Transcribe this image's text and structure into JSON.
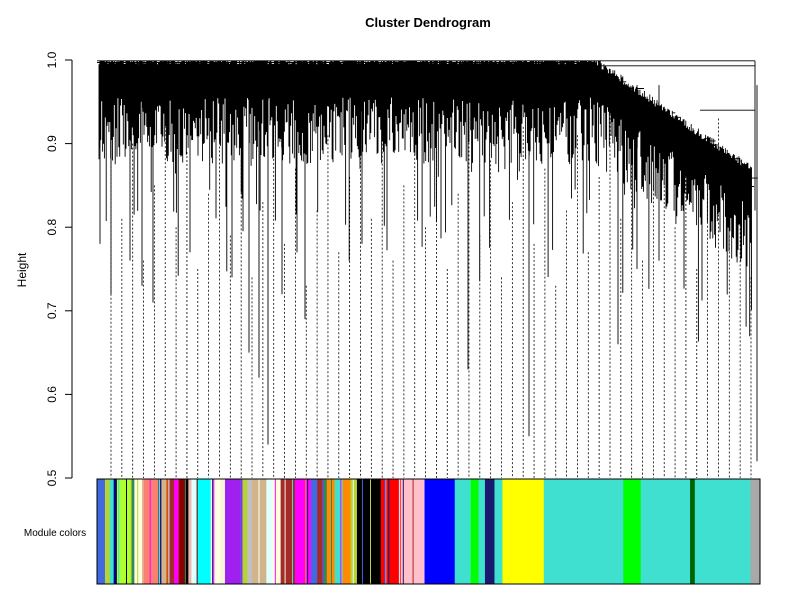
{
  "chart_data": {
    "type": "dendrogram",
    "title": "Cluster Dendrogram",
    "xlabel": "",
    "ylabel": "Height",
    "ylim": [
      0.5,
      1.0
    ],
    "yticks": [
      0.5,
      0.6,
      0.7,
      0.8,
      0.9,
      1.0
    ],
    "ytick_labels": [
      "0.5",
      "0.6",
      "0.7",
      "0.8",
      "0.9",
      "1.0"
    ],
    "color_bar_label": "Module colors",
    "dashed_leaf_count": 60,
    "colors": {
      "background": "#ffffff",
      "tree": "#000000"
    },
    "module_color_bands": [
      {
        "color": "#4169e1",
        "width": 0.01
      },
      {
        "color": "#b8d432",
        "width": 0.006
      },
      {
        "color": "#40e0d0",
        "width": 0.005
      },
      {
        "color": "#000080",
        "width": 0.004
      },
      {
        "color": "#adff2f",
        "width": 0.018
      },
      {
        "color": "#2e8b57",
        "width": 0.004
      },
      {
        "color": "#ffffe0",
        "width": 0.01
      },
      {
        "color": "#fa8072",
        "width": 0.02
      },
      {
        "color": "#191970",
        "width": 0.004
      },
      {
        "color": "#d2b48c",
        "width": 0.006
      },
      {
        "color": "#a52a2a",
        "width": 0.01
      },
      {
        "color": "#ff00ff",
        "width": 0.006
      },
      {
        "color": "#8b0000",
        "width": 0.008
      },
      {
        "color": "#000000",
        "width": 0.004
      },
      {
        "color": "#ffc0cb",
        "width": 0.004
      },
      {
        "color": "#e0ffff",
        "width": 0.006
      },
      {
        "color": "#00ffff",
        "width": 0.018
      },
      {
        "color": "#ffffe0",
        "width": 0.012
      },
      {
        "color": "#f5f5dc",
        "width": 0.006
      },
      {
        "color": "#a020f0",
        "width": 0.022
      },
      {
        "color": "#b8d432",
        "width": 0.006
      },
      {
        "color": "#c0c0c0",
        "width": 0.006
      },
      {
        "color": "#d2b48c",
        "width": 0.018
      },
      {
        "color": "#e0ffff",
        "width": 0.008
      },
      {
        "color": "#ffffe0",
        "width": 0.01
      },
      {
        "color": "#a52a2a",
        "width": 0.018
      },
      {
        "color": "#ff00ff",
        "width": 0.02
      },
      {
        "color": "#4169e1",
        "width": 0.008
      },
      {
        "color": "#a52a2a",
        "width": 0.006
      },
      {
        "color": "#2e8b57",
        "width": 0.006
      },
      {
        "color": "#ff8c00",
        "width": 0.01
      },
      {
        "color": "#40e0d0",
        "width": 0.01
      },
      {
        "color": "#ff8c00",
        "width": 0.01
      },
      {
        "color": "#b8d432",
        "width": 0.008
      },
      {
        "color": "#000000",
        "width": 0.03
      },
      {
        "color": "#ff0000",
        "width": 0.025
      },
      {
        "color": "#ffc0cb",
        "width": 0.03
      },
      {
        "color": "#0000ff",
        "width": 0.038
      },
      {
        "color": "#40e0d0",
        "width": 0.02
      },
      {
        "color": "#00ff00",
        "width": 0.01
      },
      {
        "color": "#40e0d0",
        "width": 0.008
      },
      {
        "color": "#191970",
        "width": 0.012
      },
      {
        "color": "#40e0d0",
        "width": 0.01
      },
      {
        "color": "#ffff00",
        "width": 0.052
      },
      {
        "color": "#40e0d0",
        "width": 0.1
      },
      {
        "color": "#00ff00",
        "width": 0.022
      },
      {
        "color": "#40e0d0",
        "width": 0.062
      },
      {
        "color": "#006400",
        "width": 0.006
      },
      {
        "color": "#40e0d0",
        "width": 0.07
      },
      {
        "color": "#a9a9a9",
        "width": 0.012
      }
    ]
  }
}
